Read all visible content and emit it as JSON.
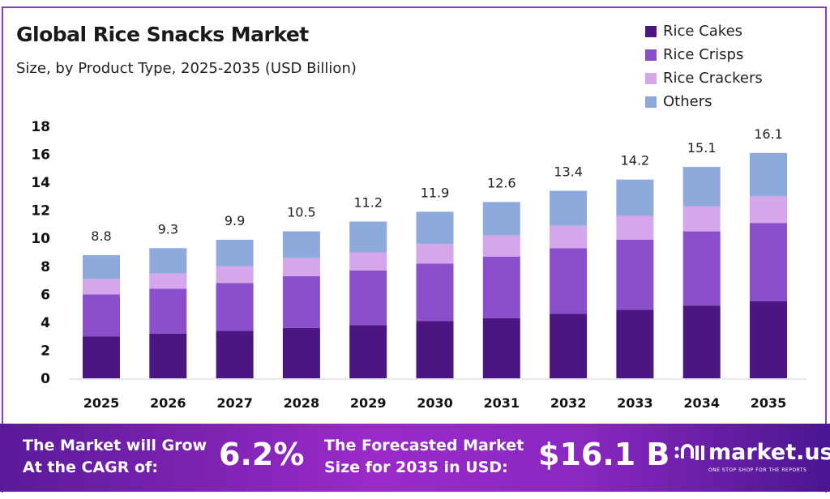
{
  "chart_data": {
    "type": "bar",
    "stacked": true,
    "title": "Global Rice Snacks Market",
    "subtitle": "Size, by Product Type, 2025-2035 (USD Billion)",
    "xlabel": "",
    "ylabel": "",
    "ylim": [
      0,
      18
    ],
    "yticks": [
      0,
      2,
      4,
      6,
      8,
      10,
      12,
      14,
      16,
      18
    ],
    "grid": false,
    "legend_position": "top-right",
    "categories": [
      "2025",
      "2026",
      "2027",
      "2028",
      "2029",
      "2030",
      "2031",
      "2032",
      "2033",
      "2034",
      "2035"
    ],
    "totals": [
      "8.8",
      "9.3",
      "9.9",
      "10.5",
      "11.2",
      "11.9",
      "12.6",
      "13.4",
      "14.2",
      "15.1",
      "16.1"
    ],
    "series": [
      {
        "name": "Rice Cakes",
        "color": "#4b1582",
        "values": [
          3.0,
          3.2,
          3.4,
          3.6,
          3.8,
          4.1,
          4.3,
          4.6,
          4.9,
          5.2,
          5.5
        ]
      },
      {
        "name": "Rice Crisps",
        "color": "#8b4fcc",
        "values": [
          3.0,
          3.2,
          3.4,
          3.7,
          3.9,
          4.1,
          4.4,
          4.7,
          5.0,
          5.3,
          5.6
        ]
      },
      {
        "name": "Rice Crackers",
        "color": "#d5a6ea",
        "values": [
          1.1,
          1.1,
          1.2,
          1.3,
          1.3,
          1.4,
          1.5,
          1.6,
          1.7,
          1.8,
          1.9
        ]
      },
      {
        "name": "Others",
        "color": "#8ea9dc",
        "values": [
          1.7,
          1.8,
          1.9,
          1.9,
          2.2,
          2.3,
          2.4,
          2.5,
          2.6,
          2.8,
          3.1
        ]
      }
    ]
  },
  "footer": {
    "cagr_label_1": "The Market will Grow",
    "cagr_label_2": "At the CAGR of:",
    "cagr_value": "6.2%",
    "forecast_label_1": "The Forecasted Market",
    "forecast_label_2": "Size for 2035 in USD:",
    "forecast_value": "$16.1 B",
    "logo_name": "market.us",
    "logo_tagline": "ONE STOP SHOP FOR THE REPORTS"
  }
}
